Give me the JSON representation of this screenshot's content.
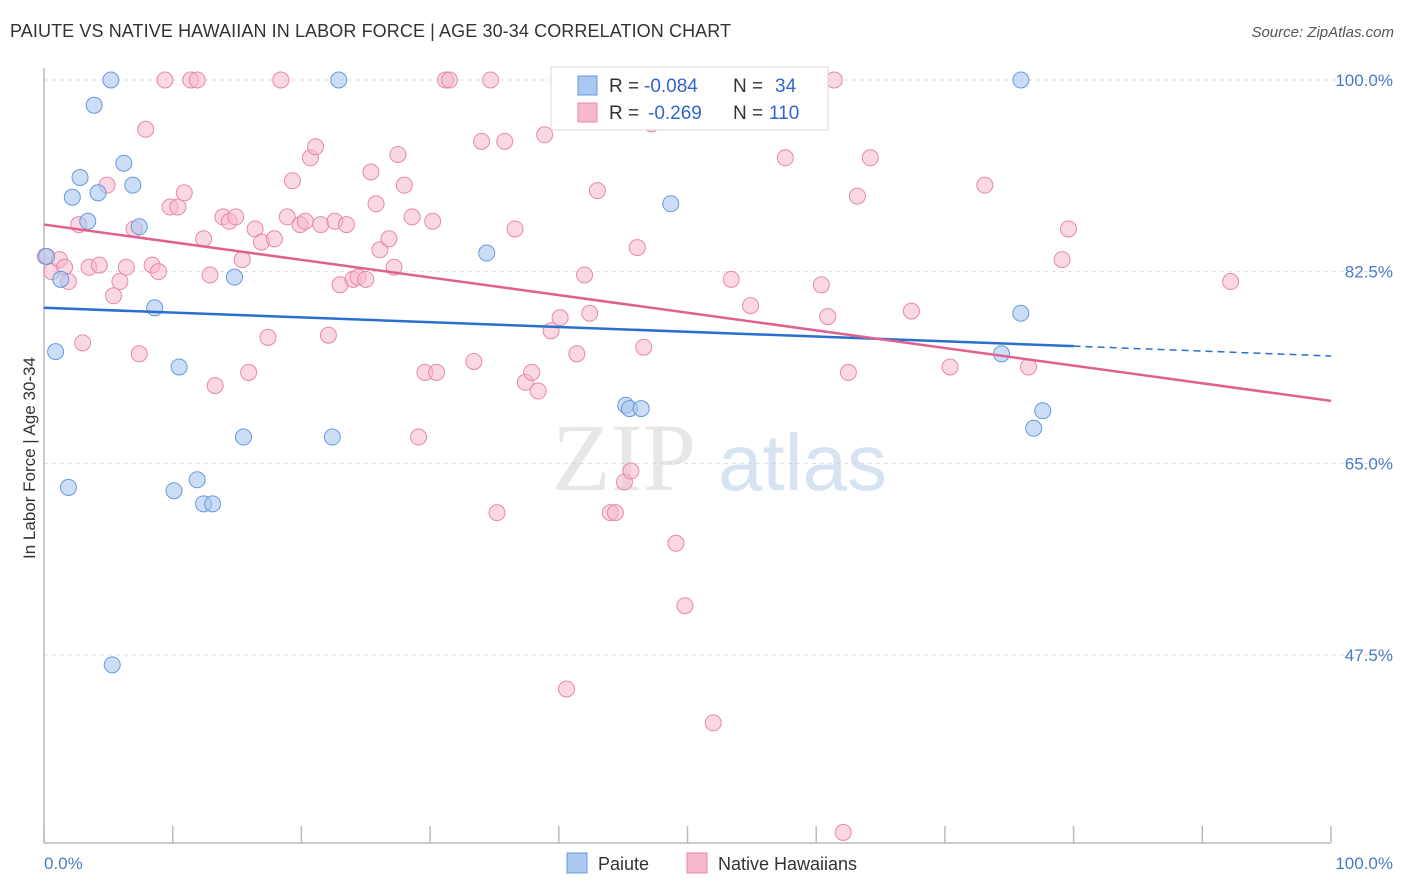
{
  "title": "PAIUTE VS NATIVE HAWAIIAN IN LABOR FORCE | AGE 30-34 CORRELATION CHART",
  "source": "Source: ZipAtlas.com",
  "watermark": {
    "zip": "ZIP",
    "atlas": "atlas"
  },
  "legend_top": [
    {
      "r_label": "R =",
      "r_value": "-0.084",
      "n_label": "N =",
      "n_value": "34"
    },
    {
      "r_label": "R =",
      "r_value": "-0.269",
      "n_label": "N =",
      "n_value": "110"
    }
  ],
  "legend_bottom": [
    {
      "label": "Paiute"
    },
    {
      "label": "Native Hawaiians"
    }
  ],
  "colors": {
    "paiute_fill": "#aac8f0",
    "paiute_stroke": "#6699dd",
    "paiute_line": "#2a6fd0",
    "hawaiian_fill": "#f6b8cc",
    "hawaiian_stroke": "#e888a8",
    "hawaiian_line": "#e06090",
    "tick_label": "#4a7bc8",
    "grid": "#dddddd"
  },
  "chart_data": {
    "type": "scatter",
    "title": "PAIUTE VS NATIVE HAWAIIAN IN LABOR FORCE | AGE 30-34 CORRELATION CHART",
    "xlabel": "",
    "ylabel": "In Labor Force | Age 30-34",
    "xlim": [
      0,
      100
    ],
    "ylim": [
      30.5,
      102
    ],
    "x_tick_labels": [
      "0.0%",
      "100.0%"
    ],
    "y_ticks": [
      47.5,
      65.0,
      82.5,
      100.0
    ],
    "y_tick_labels": [
      "47.5%",
      "65.0%",
      "82.5%",
      "100.0%"
    ],
    "grid": true,
    "legend_position": "top-center",
    "series": [
      {
        "name": "Paiute",
        "r": -0.084,
        "n": 34,
        "trend": {
          "x": [
            0,
            80
          ],
          "y": [
            79.2,
            75.7
          ],
          "dashed_to": [
            100,
            74.8
          ]
        },
        "points": [
          [
            0.2,
            83.9
          ],
          [
            0.9,
            75.2
          ],
          [
            1.3,
            81.8
          ],
          [
            1.9,
            62.8
          ],
          [
            2.2,
            89.3
          ],
          [
            2.8,
            91.1
          ],
          [
            3.4,
            87.1
          ],
          [
            3.9,
            97.7
          ],
          [
            4.2,
            89.7
          ],
          [
            5.2,
            100.0
          ],
          [
            5.3,
            46.6
          ],
          [
            6.2,
            92.4
          ],
          [
            6.9,
            90.4
          ],
          [
            7.4,
            86.6
          ],
          [
            8.6,
            79.2
          ],
          [
            10.1,
            62.5
          ],
          [
            10.5,
            73.8
          ],
          [
            11.9,
            63.5
          ],
          [
            12.4,
            61.3
          ],
          [
            13.1,
            61.3
          ],
          [
            14.8,
            82.0
          ],
          [
            15.5,
            67.4
          ],
          [
            22.4,
            67.4
          ],
          [
            22.9,
            100.0
          ],
          [
            34.4,
            84.2
          ],
          [
            45.2,
            70.3
          ],
          [
            45.5,
            70.0
          ],
          [
            46.4,
            70.0
          ],
          [
            48.7,
            88.7
          ],
          [
            75.9,
            100.0
          ],
          [
            74.4,
            75.0
          ],
          [
            75.9,
            78.7
          ],
          [
            76.9,
            68.2
          ],
          [
            77.6,
            69.8
          ]
        ]
      },
      {
        "name": "Native Hawaiians",
        "r": -0.269,
        "n": 110,
        "trend": {
          "x": [
            0,
            100
          ],
          "y": [
            86.8,
            70.7
          ]
        },
        "points": [
          [
            0.1,
            83.9
          ],
          [
            0.6,
            82.5
          ],
          [
            1.2,
            83.6
          ],
          [
            1.6,
            82.9
          ],
          [
            1.9,
            81.6
          ],
          [
            2.7,
            86.8
          ],
          [
            3.0,
            76.0
          ],
          [
            3.5,
            82.9
          ],
          [
            4.3,
            83.1
          ],
          [
            4.9,
            90.4
          ],
          [
            5.4,
            80.3
          ],
          [
            5.9,
            81.6
          ],
          [
            6.4,
            82.9
          ],
          [
            7.0,
            86.4
          ],
          [
            7.4,
            75.0
          ],
          [
            7.9,
            95.5
          ],
          [
            8.4,
            83.1
          ],
          [
            8.9,
            82.5
          ],
          [
            9.4,
            100.0
          ],
          [
            9.8,
            88.4
          ],
          [
            10.4,
            88.4
          ],
          [
            10.9,
            89.7
          ],
          [
            11.4,
            100.0
          ],
          [
            11.9,
            100.0
          ],
          [
            12.4,
            85.5
          ],
          [
            12.9,
            82.2
          ],
          [
            13.3,
            72.1
          ],
          [
            13.9,
            87.5
          ],
          [
            14.4,
            87.1
          ],
          [
            14.9,
            87.5
          ],
          [
            15.4,
            83.6
          ],
          [
            15.9,
            73.3
          ],
          [
            16.4,
            86.4
          ],
          [
            16.9,
            85.2
          ],
          [
            17.4,
            76.5
          ],
          [
            17.9,
            85.5
          ],
          [
            18.4,
            100.0
          ],
          [
            18.9,
            87.5
          ],
          [
            19.3,
            90.8
          ],
          [
            19.9,
            86.8
          ],
          [
            20.3,
            87.1
          ],
          [
            20.7,
            92.9
          ],
          [
            21.1,
            93.9
          ],
          [
            21.5,
            86.8
          ],
          [
            22.1,
            76.7
          ],
          [
            22.6,
            87.1
          ],
          [
            23.0,
            81.3
          ],
          [
            23.5,
            86.8
          ],
          [
            24.0,
            81.8
          ],
          [
            24.4,
            82.0
          ],
          [
            25.0,
            81.8
          ],
          [
            25.4,
            91.6
          ],
          [
            25.8,
            88.7
          ],
          [
            26.1,
            84.5
          ],
          [
            26.8,
            85.5
          ],
          [
            27.2,
            82.9
          ],
          [
            27.5,
            93.2
          ],
          [
            28.0,
            90.4
          ],
          [
            28.6,
            87.5
          ],
          [
            29.1,
            67.4
          ],
          [
            29.6,
            73.3
          ],
          [
            30.2,
            87.1
          ],
          [
            30.5,
            73.3
          ],
          [
            31.2,
            100.0
          ],
          [
            31.5,
            100.0
          ],
          [
            33.4,
            74.3
          ],
          [
            34.0,
            94.4
          ],
          [
            34.7,
            100.0
          ],
          [
            35.2,
            60.5
          ],
          [
            35.8,
            94.4
          ],
          [
            36.6,
            86.4
          ],
          [
            37.4,
            72.4
          ],
          [
            37.9,
            73.3
          ],
          [
            38.4,
            71.6
          ],
          [
            38.9,
            95.0
          ],
          [
            39.4,
            77.1
          ],
          [
            40.1,
            78.3
          ],
          [
            40.6,
            44.4
          ],
          [
            41.4,
            75.0
          ],
          [
            42.0,
            82.2
          ],
          [
            42.4,
            78.7
          ],
          [
            43.0,
            89.9
          ],
          [
            44.0,
            60.5
          ],
          [
            44.4,
            60.5
          ],
          [
            45.1,
            63.3
          ],
          [
            45.6,
            64.3
          ],
          [
            46.1,
            84.7
          ],
          [
            46.6,
            75.6
          ],
          [
            47.2,
            96.0
          ],
          [
            47.5,
            97.1
          ],
          [
            49.1,
            57.7
          ],
          [
            49.8,
            52.0
          ],
          [
            52.0,
            41.3
          ],
          [
            53.4,
            81.8
          ],
          [
            54.9,
            79.4
          ],
          [
            57.6,
            92.9
          ],
          [
            60.4,
            81.3
          ],
          [
            60.9,
            78.4
          ],
          [
            61.4,
            100.0
          ],
          [
            62.1,
            31.3
          ],
          [
            62.5,
            73.3
          ],
          [
            63.2,
            89.4
          ],
          [
            64.2,
            92.9
          ],
          [
            67.4,
            78.9
          ],
          [
            70.4,
            73.8
          ],
          [
            73.1,
            90.4
          ],
          [
            76.5,
            73.8
          ],
          [
            79.1,
            83.6
          ],
          [
            79.6,
            86.4
          ],
          [
            92.2,
            81.6
          ]
        ]
      }
    ]
  }
}
